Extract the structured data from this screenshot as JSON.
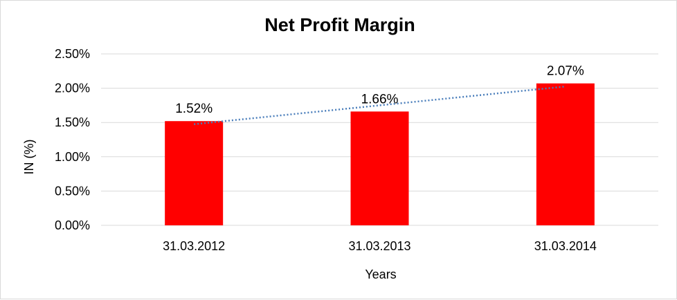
{
  "chart_data": {
    "type": "bar",
    "title": "Net Profit Margin",
    "xlabel": "Years",
    "ylabel": "IN (%)",
    "categories": [
      "31.03.2012",
      "31.03.2013",
      "31.03.2014"
    ],
    "values": [
      1.52,
      1.66,
      2.07
    ],
    "data_labels": [
      "1.52%",
      "1.66%",
      "2.07%"
    ],
    "ylim": [
      0,
      2.5
    ],
    "yticks": [
      0,
      0.5,
      1.0,
      1.5,
      2.0,
      2.5
    ],
    "ytick_labels": [
      "0.00%",
      "0.50%",
      "1.00%",
      "1.50%",
      "2.00%",
      "2.50%"
    ],
    "grid": true,
    "legend": "none",
    "trendline": {
      "type": "linear",
      "style": "dotted",
      "color": "#4a7ebb"
    },
    "colors": {
      "bar": "#ff0000",
      "grid": "#d9d9d9"
    }
  }
}
